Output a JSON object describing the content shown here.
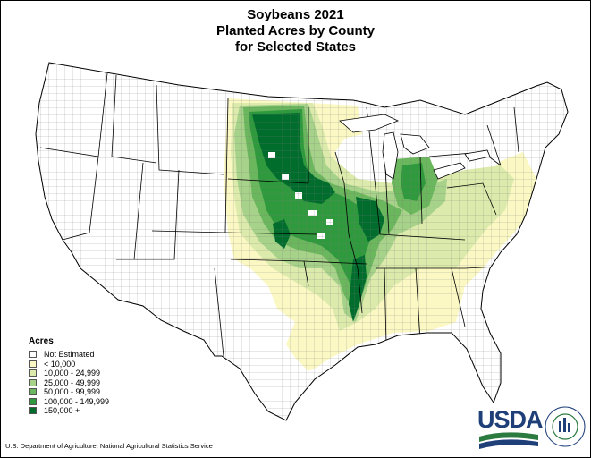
{
  "title": {
    "line1": "Soybeans 2021",
    "line2": "Planted Acres by County",
    "line3": "for Selected States"
  },
  "legend": {
    "title": "Acres",
    "items": [
      {
        "label": "Not Estimated",
        "color": "#ffffff"
      },
      {
        "label": "< 10,000",
        "color": "#fbf8c4"
      },
      {
        "label": "10,000 -  24,999",
        "color": "#dcebac"
      },
      {
        "label": "25,000 -  49,999",
        "color": "#a7d289"
      },
      {
        "label": "50,000 -  99,999",
        "color": "#6bb75e"
      },
      {
        "label": "100,000 - 149,999",
        "color": "#2f9a3d"
      },
      {
        "label": "150,000 +",
        "color": "#006d2c"
      }
    ]
  },
  "footer": "U.S. Department of Agriculture, National Agricultural Statistics Service",
  "logo": {
    "name": "USDA",
    "ring_text": "AGRICULTURE COUNTS",
    "colors": {
      "blue": "#1f3f79",
      "green": "#2b7a3f"
    }
  }
}
